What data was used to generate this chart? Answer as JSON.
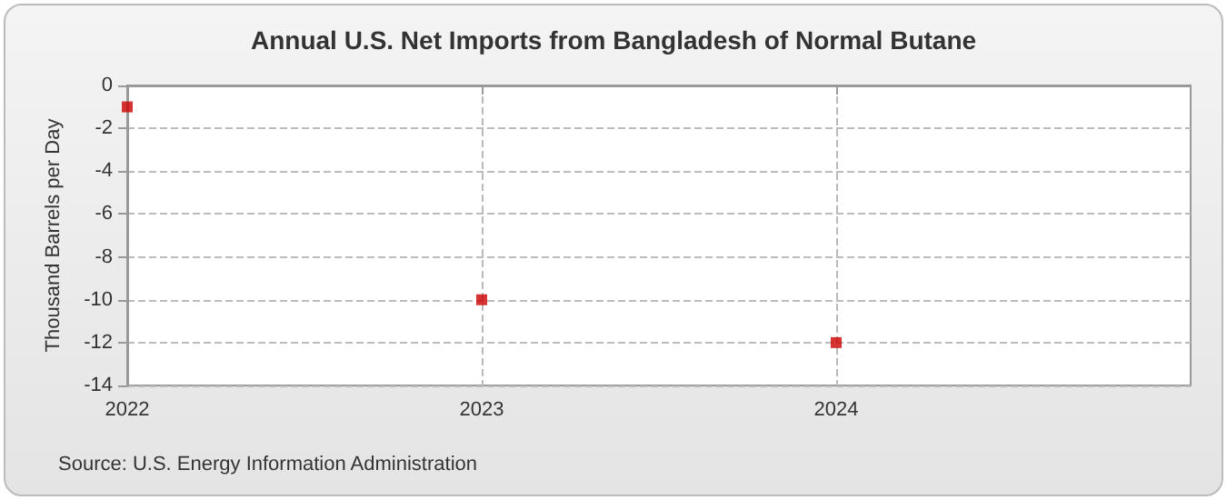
{
  "chart_data": {
    "type": "scatter",
    "title": "Annual U.S. Net Imports from Bangladesh of Normal Butane",
    "ylabel": "Thousand Barrels per Day",
    "x": [
      2022,
      2023,
      2024
    ],
    "series": [
      {
        "color": "#cc0000",
        "values": [
          -1,
          -10,
          -12
        ]
      }
    ],
    "xlim": [
      2022,
      2025
    ],
    "xticks": [
      2022,
      2023,
      2024
    ],
    "ylim": [
      -14,
      0
    ],
    "yticks": [
      -14,
      -12,
      -10,
      -8,
      -6,
      -4,
      -2,
      0
    ],
    "grid": true,
    "marker": "square",
    "annotations": [
      "Source: U.S. Energy Information Administration"
    ]
  }
}
